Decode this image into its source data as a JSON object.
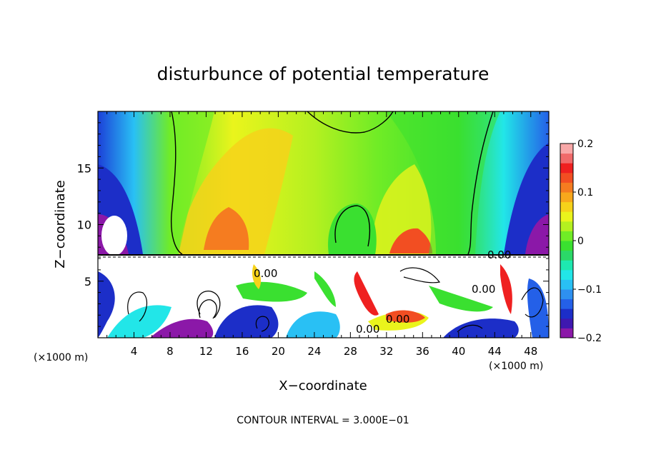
{
  "chart_data": {
    "type": "heatmap",
    "title": "disturbunce of potential temperature",
    "xlabel": "X−coordinate",
    "ylabel": "Z−coordinate",
    "x_unit": "(×1000 m)",
    "z_unit": "(×1000 m)",
    "x_ticks": [
      4,
      8,
      12,
      16,
      20,
      24,
      28,
      32,
      36,
      40,
      44,
      48
    ],
    "z_ticks": [
      5,
      10,
      15
    ],
    "xlim": [
      0,
      50
    ],
    "zlim": [
      0,
      20
    ],
    "colorbar": {
      "ticks": [
        "0.2",
        "0.1",
        "0",
        "−0.1",
        "−0.2"
      ],
      "range": [
        -0.2,
        0.2
      ],
      "colors": [
        "#8b18a8",
        "#3e18b0",
        "#1c2ec8",
        "#2460e8",
        "#2e90f0",
        "#29c0f4",
        "#22e6e8",
        "#1ee8b0",
        "#2bd868",
        "#3ae030",
        "#70ec26",
        "#b4f020",
        "#eaf41c",
        "#f6d21a",
        "#f8a81c",
        "#f57c20",
        "#f24e22",
        "#ef2020",
        "#f06a6a",
        "#f8a8a8"
      ]
    },
    "contour_labels": [
      "0.00",
      "0.00",
      "0.00",
      "0.00",
      "0.00"
    ],
    "footer": "CONTOUR INTERVAL = 3.000E−01"
  }
}
